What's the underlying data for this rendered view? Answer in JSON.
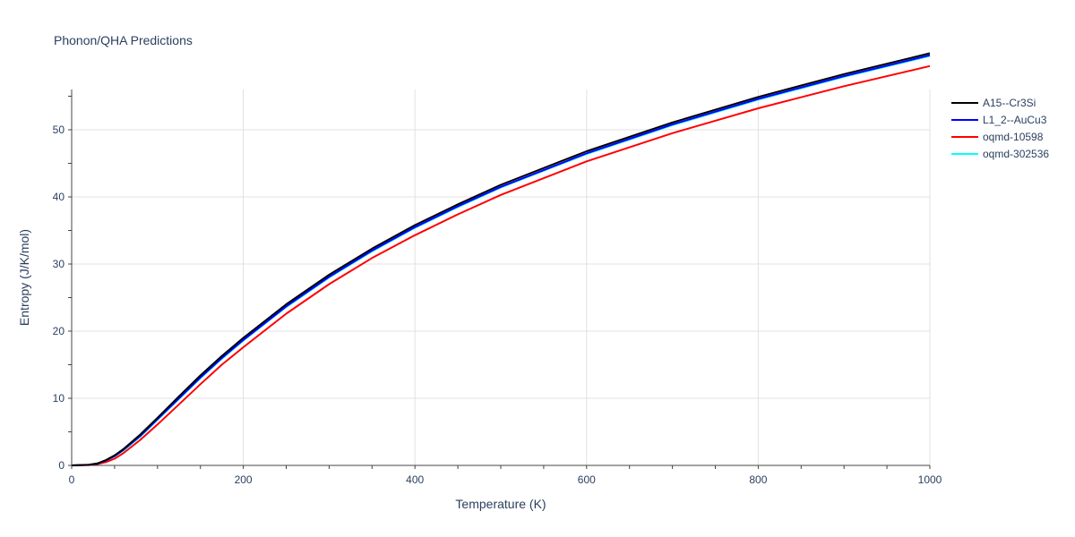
{
  "chart_data": {
    "type": "line",
    "title": "Phonon/QHA Predictions",
    "xlabel": "Temperature (K)",
    "ylabel": "Entropy (J/K/mol)",
    "xlim": [
      0,
      1000
    ],
    "ylim": [
      0,
      56
    ],
    "xticks": [
      0,
      200,
      400,
      600,
      800,
      1000
    ],
    "yticks": [
      0,
      10,
      20,
      30,
      40,
      50
    ],
    "grid": true,
    "legend_position": "top-right",
    "x": [
      0,
      20,
      30,
      40,
      50,
      60,
      80,
      100,
      125,
      150,
      175,
      200,
      250,
      300,
      350,
      400,
      450,
      500,
      600,
      700,
      800,
      900,
      1000
    ],
    "series": [
      {
        "name": "A15--Cr3Si",
        "color": "#000000",
        "values": [
          0,
          0.1,
          0.3,
          0.8,
          1.5,
          2.4,
          4.6,
          7.1,
          10.3,
          13.4,
          16.3,
          19.0,
          24.0,
          28.4,
          32.3,
          35.8,
          38.9,
          41.8,
          46.8,
          51.1,
          54.9,
          58.3,
          61.4
        ]
      },
      {
        "name": "L1_2--AuCu3",
        "color": "#0000ff",
        "values": [
          0,
          0.08,
          0.25,
          0.75,
          1.4,
          2.3,
          4.4,
          6.9,
          10.0,
          13.1,
          16.0,
          18.7,
          23.7,
          28.1,
          32.0,
          35.5,
          38.6,
          41.5,
          46.5,
          50.8,
          54.6,
          58.0,
          61.1
        ]
      },
      {
        "name": "oqmd-10598",
        "color": "#ff0000",
        "values": [
          0,
          0.05,
          0.2,
          0.5,
          1.0,
          1.8,
          3.8,
          6.1,
          9.1,
          12.1,
          15.0,
          17.6,
          22.6,
          27.0,
          30.9,
          34.3,
          37.4,
          40.3,
          45.3,
          49.5,
          53.2,
          56.5,
          59.5
        ]
      },
      {
        "name": "oqmd-302536",
        "color": "#00ffff",
        "values": [
          0,
          0.08,
          0.25,
          0.7,
          1.35,
          2.2,
          4.3,
          6.8,
          9.9,
          13.0,
          15.9,
          18.6,
          23.6,
          28.0,
          31.9,
          35.4,
          38.5,
          41.4,
          46.4,
          50.7,
          54.5,
          57.9,
          61.0
        ]
      }
    ]
  }
}
